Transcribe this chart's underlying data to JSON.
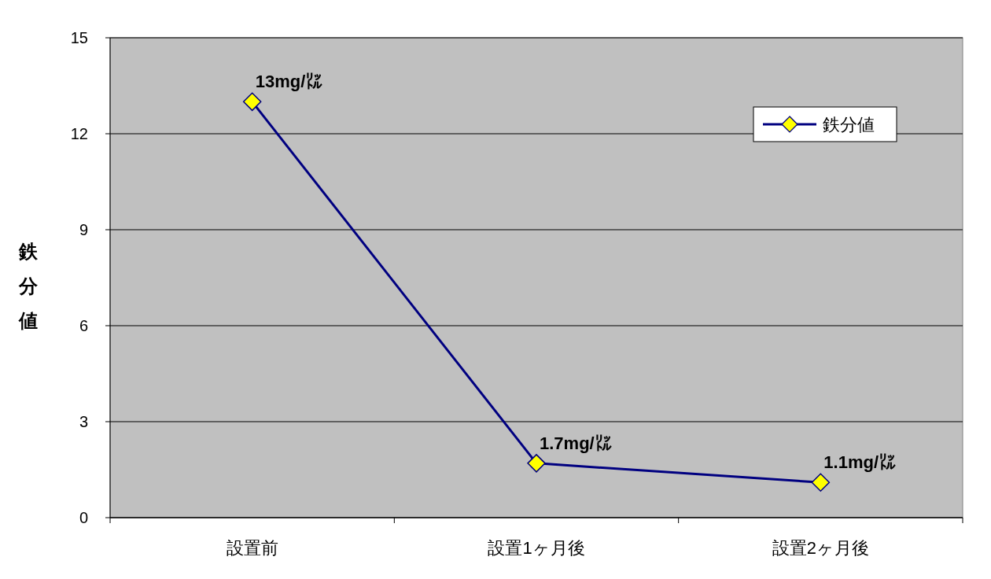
{
  "chart_data": {
    "type": "line",
    "ylabel": "鉄分値",
    "categories": [
      "設置前",
      "設置1ヶ月後",
      "設置2ヶ月後"
    ],
    "series": [
      {
        "name": "鉄分値",
        "color": "#000080",
        "values": [
          13,
          1.7,
          1.1
        ],
        "value_labels": [
          "13mg/㍑",
          "1.7mg/㍑",
          "1.1mg/㍑"
        ]
      }
    ],
    "ylim": [
      0,
      15
    ],
    "yticks": [
      0,
      3,
      6,
      9,
      12,
      15
    ],
    "grid": "y",
    "legend": "top right",
    "marker": "diamond",
    "line_style": "solid"
  }
}
